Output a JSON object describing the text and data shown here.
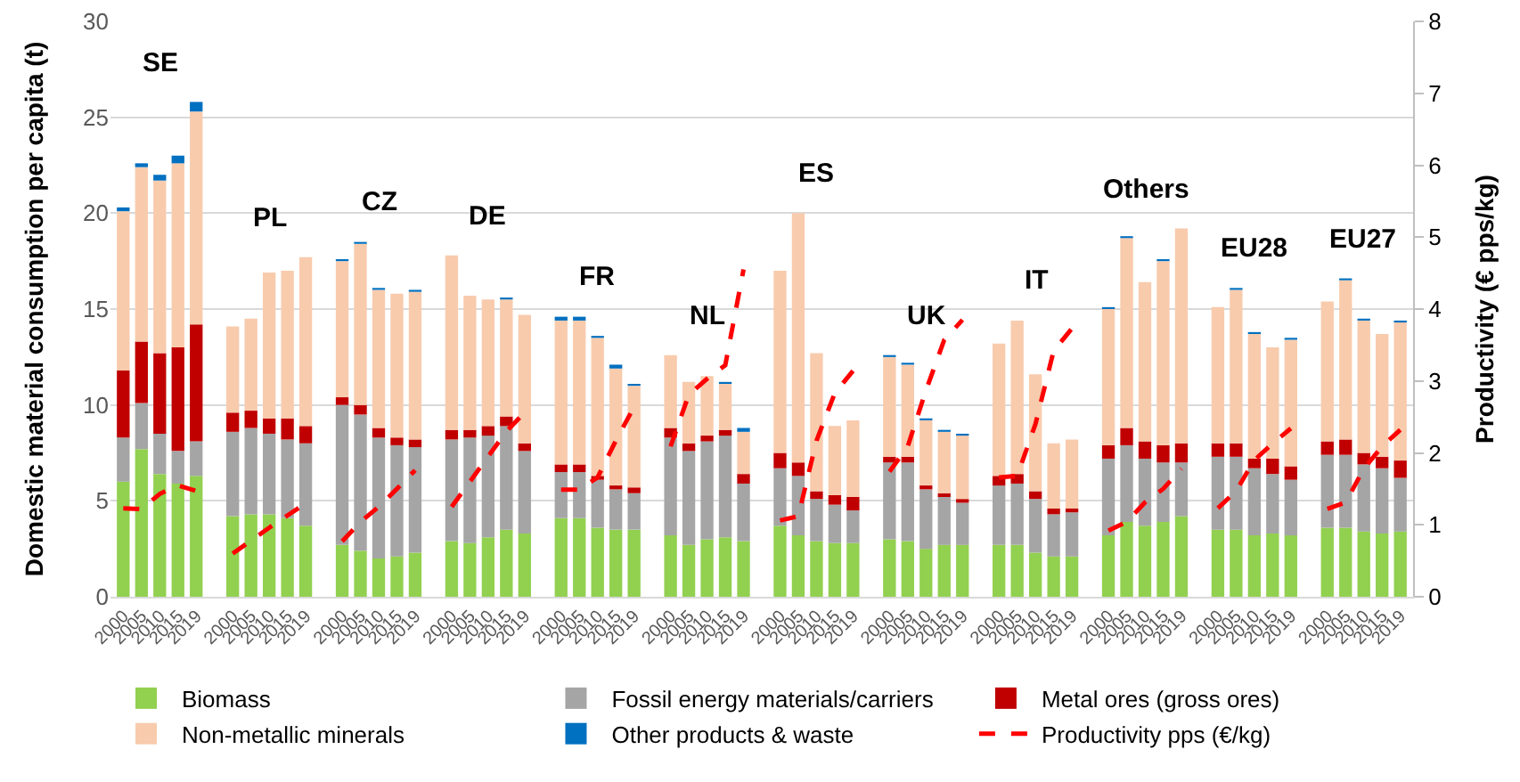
{
  "chart_data": {
    "type": "bar",
    "stacked": true,
    "ylabel": "Domestic material consumption per capita (t)",
    "y2label": "Productivity (€ pps/kg)",
    "categories": [
      "2000",
      "2005",
      "2010",
      "2015",
      "2019",
      null,
      "2000",
      "2005",
      "2010",
      "2015",
      "2019",
      null,
      "2000",
      "2005",
      "2010",
      "2015",
      "2019",
      null,
      "2000",
      "2005",
      "2010",
      "2015",
      "2019",
      null,
      "2000",
      "2005",
      "2010",
      "2015",
      "2019",
      null,
      "2000",
      "2005",
      "2010",
      "2015",
      "2019",
      null,
      "2000",
      "2005",
      "2010",
      "2015",
      "2019",
      null,
      "2000",
      "2005",
      "2010",
      "2015",
      "2019",
      null,
      "2000",
      "2005",
      "2010",
      "2015",
      "2019",
      null,
      "2000",
      "2005",
      "2010",
      "2015",
      "2019",
      null,
      "2000",
      "2005",
      "2010",
      "2015",
      "2019",
      null,
      "2000",
      "2005",
      "2010",
      "2015",
      "2019"
    ],
    "series": [
      {
        "name": "Biomass",
        "color": "#92d050",
        "values": [
          6.0,
          7.7,
          6.4,
          5.9,
          6.3,
          null,
          4.2,
          4.3,
          4.3,
          4.1,
          3.7,
          null,
          2.7,
          2.4,
          2.0,
          2.1,
          2.3,
          null,
          2.9,
          2.8,
          3.1,
          3.5,
          3.3,
          null,
          4.1,
          4.1,
          3.6,
          3.5,
          3.5,
          null,
          3.2,
          2.7,
          3.0,
          3.1,
          2.9,
          null,
          3.7,
          3.2,
          2.9,
          2.8,
          2.8,
          null,
          3.0,
          2.9,
          2.5,
          2.7,
          2.7,
          null,
          2.7,
          2.7,
          2.3,
          2.1,
          2.1,
          null,
          3.2,
          3.9,
          3.7,
          3.9,
          4.2,
          null,
          3.5,
          3.5,
          3.2,
          3.3,
          3.2,
          null,
          3.6,
          3.6,
          3.4,
          3.3,
          3.4
        ]
      },
      {
        "name": "Fossil energy materials/carriers",
        "color": "#a5a5a5",
        "values": [
          2.3,
          2.4,
          2.1,
          1.7,
          1.8,
          null,
          4.4,
          4.5,
          4.2,
          4.1,
          4.3,
          null,
          7.3,
          7.1,
          6.3,
          5.8,
          5.5,
          null,
          5.3,
          5.5,
          5.3,
          5.4,
          4.3,
          null,
          2.4,
          2.4,
          2.5,
          2.1,
          1.9,
          null,
          5.1,
          4.9,
          5.1,
          5.3,
          3.0,
          null,
          3.0,
          3.1,
          2.2,
          2.0,
          1.7,
          null,
          4.0,
          4.1,
          3.1,
          2.5,
          2.2,
          null,
          3.1,
          3.2,
          2.8,
          2.2,
          2.3,
          null,
          4.0,
          4.0,
          3.5,
          3.1,
          2.8,
          null,
          3.8,
          3.8,
          3.5,
          3.1,
          2.9,
          null,
          3.8,
          3.8,
          3.5,
          3.4,
          2.8
        ]
      },
      {
        "name": "Metal ores (gross ores)",
        "color": "#c00000",
        "values": [
          3.5,
          3.2,
          4.2,
          5.4,
          6.1,
          null,
          1.0,
          0.9,
          0.8,
          1.1,
          0.9,
          null,
          0.4,
          0.5,
          0.5,
          0.4,
          0.4,
          null,
          0.5,
          0.4,
          0.5,
          0.5,
          0.4,
          null,
          0.4,
          0.4,
          0.2,
          0.2,
          0.3,
          null,
          0.5,
          0.4,
          0.3,
          0.3,
          0.5,
          null,
          0.8,
          0.7,
          0.4,
          0.5,
          0.7,
          null,
          0.3,
          0.3,
          0.2,
          0.2,
          0.2,
          null,
          0.5,
          0.5,
          0.4,
          0.3,
          0.2,
          null,
          0.7,
          0.9,
          0.9,
          0.9,
          1.0,
          null,
          0.7,
          0.7,
          0.5,
          0.8,
          0.7,
          null,
          0.7,
          0.8,
          0.6,
          0.6,
          0.9
        ]
      },
      {
        "name": "Non-metallic minerals",
        "color": "#f8cbad",
        "values": [
          8.3,
          9.1,
          9.0,
          9.6,
          11.1,
          null,
          4.5,
          4.8,
          7.6,
          7.7,
          8.8,
          null,
          7.1,
          8.4,
          7.2,
          7.5,
          7.7,
          null,
          9.1,
          7.0,
          6.6,
          6.1,
          6.7,
          null,
          7.5,
          7.5,
          7.2,
          6.1,
          5.3,
          null,
          3.8,
          3.2,
          3.1,
          2.4,
          2.2,
          null,
          9.5,
          13.0,
          7.2,
          3.6,
          4.0,
          null,
          5.2,
          4.8,
          3.4,
          3.2,
          3.3,
          null,
          6.9,
          8.0,
          6.1,
          3.4,
          3.6,
          null,
          7.1,
          9.9,
          8.3,
          9.6,
          11.2,
          null,
          7.1,
          8.0,
          6.5,
          5.8,
          6.6,
          null,
          7.3,
          8.3,
          6.9,
          6.4,
          7.2
        ]
      },
      {
        "name": "Other products & waste",
        "color": "#0070c0",
        "values": [
          0.2,
          0.2,
          0.3,
          0.4,
          0.5,
          null,
          null,
          null,
          null,
          null,
          null,
          null,
          0.1,
          0.1,
          0.1,
          null,
          0.1,
          null,
          null,
          null,
          null,
          0.1,
          null,
          null,
          0.2,
          0.2,
          0.1,
          0.2,
          0.1,
          null,
          null,
          null,
          null,
          0.1,
          0.2,
          null,
          null,
          null,
          null,
          null,
          null,
          null,
          0.1,
          0.1,
          0.1,
          0.1,
          0.1,
          null,
          null,
          null,
          null,
          null,
          null,
          null,
          0.1,
          0.1,
          null,
          0.1,
          null,
          null,
          null,
          0.1,
          0.1,
          null,
          0.1,
          null,
          null,
          0.1,
          0.1,
          null,
          0.1
        ]
      },
      {
        "name": "Productivity pps (€/kg)",
        "type": "line",
        "axis": "y2",
        "line_style": "dashed",
        "color": "#ff0000",
        "values": [
          1.23,
          1.22,
          1.43,
          1.55,
          1.47,
          null,
          0.6,
          0.78,
          0.96,
          1.13,
          1.3,
          null,
          0.77,
          1.04,
          1.25,
          1.5,
          1.76,
          null,
          1.25,
          1.6,
          1.95,
          2.3,
          2.56,
          null,
          1.49,
          1.49,
          1.66,
          2.17,
          2.64,
          null,
          2.09,
          2.81,
          3.03,
          3.22,
          4.55,
          null,
          1.06,
          1.12,
          2.17,
          2.83,
          3.14,
          null,
          1.74,
          2.09,
          2.87,
          3.57,
          3.85,
          null,
          1.66,
          1.68,
          2.4,
          3.42,
          3.73,
          null,
          0.92,
          1.04,
          1.31,
          1.5,
          1.78,
          null,
          1.23,
          1.47,
          1.9,
          2.13,
          2.34,
          null,
          1.22,
          1.31,
          1.78,
          2.09,
          2.32
        ]
      }
    ],
    "ylim": [
      0,
      30
    ],
    "yticks": [
      0,
      5,
      10,
      15,
      20,
      25,
      30
    ],
    "y2lim": [
      0,
      8
    ],
    "y2ticks": [
      0,
      1,
      2,
      3,
      4,
      5,
      6,
      7,
      8
    ],
    "grid": "y",
    "legend": "bottom",
    "annotations": [
      "SE",
      "PL",
      "CZ",
      "DE",
      "FR",
      "NL",
      "ES",
      "UK",
      "IT",
      "Others",
      "EU28",
      "EU27"
    ]
  }
}
